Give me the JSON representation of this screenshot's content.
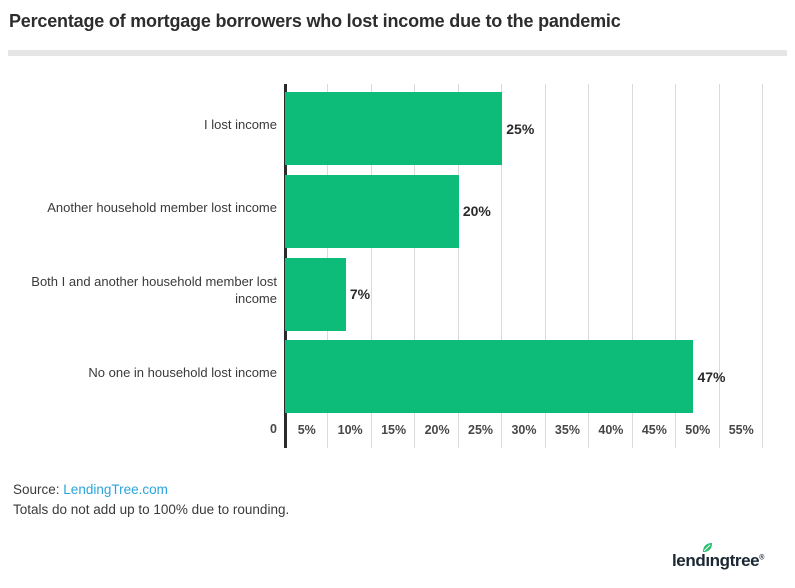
{
  "title": "Percentage of mortgage borrowers who lost income due to the pandemic",
  "chart_data": {
    "type": "bar",
    "orientation": "horizontal",
    "title": "Percentage of mortgage borrowers who lost income due to the pandemic",
    "categories": [
      "I lost income",
      "Another household member lost income",
      "Both I and another household member lost income",
      "No one in household lost income"
    ],
    "values": [
      25,
      20,
      7,
      47
    ],
    "value_labels": [
      "25%",
      "20%",
      "7%",
      "47%"
    ],
    "xlim": [
      0,
      55
    ],
    "x_tick_step": 5,
    "x_ticks": [
      "5%",
      "10%",
      "15%",
      "20%",
      "25%",
      "30%",
      "35%",
      "40%",
      "45%",
      "50%",
      "55%"
    ],
    "origin_label": "0",
    "grid": true,
    "legend": false,
    "bar_color": "#0ebc79",
    "gridline_color": "#dadada",
    "axis_line_color": "#2a2a2a"
  },
  "footer": {
    "source_label": "Source:",
    "source_link": "LendingTree.com",
    "link_color": "#2aa3dc",
    "note": "Totals do not add up to 100% due to rounding."
  },
  "logo": {
    "full_text": "lendingtree",
    "text_before_leaf": "lend",
    "dotless_i": "ı",
    "text_after_leaf": "ngtree",
    "trademark": "®",
    "wordmark_color": "#1b2733",
    "leaf_color": "#29bf6e"
  }
}
